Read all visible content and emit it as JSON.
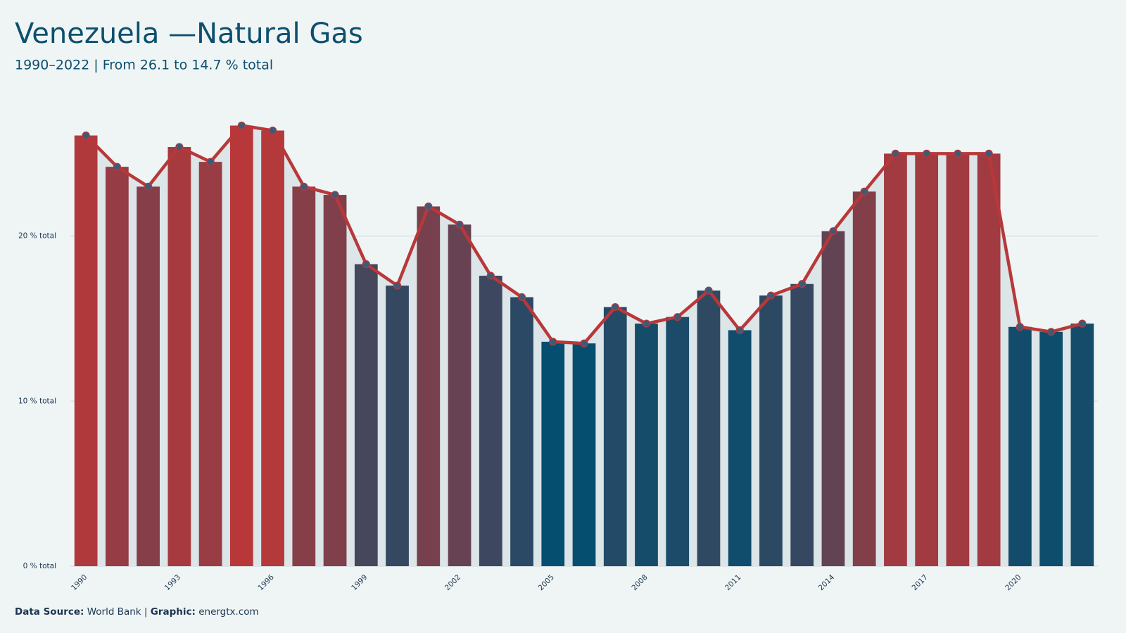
{
  "chart_data": {
    "type": "bar",
    "title": "Venezuela —Natural Gas",
    "subtitle": "1990–2022 | From 26.1 to 14.7 % total",
    "x": [
      1990,
      1991,
      1992,
      1993,
      1994,
      1995,
      1996,
      1997,
      1998,
      1999,
      2000,
      2001,
      2002,
      2003,
      2004,
      2005,
      2006,
      2007,
      2008,
      2009,
      2010,
      2011,
      2012,
      2013,
      2014,
      2015,
      2016,
      2017,
      2018,
      2019,
      2020,
      2021,
      2022
    ],
    "values": [
      26.1,
      24.2,
      23.0,
      25.4,
      24.5,
      26.7,
      26.4,
      23.0,
      22.5,
      18.3,
      17.0,
      21.8,
      20.7,
      17.6,
      16.3,
      13.6,
      13.5,
      15.7,
      14.7,
      15.1,
      16.7,
      14.3,
      16.4,
      17.1,
      20.3,
      22.7,
      25.0,
      25.0,
      25.0,
      25.0,
      14.5,
      14.2,
      14.7
    ],
    "xlim": [
      1989.5,
      2022.5
    ],
    "xticks": [
      1990,
      1993,
      1996,
      1999,
      2002,
      2005,
      2008,
      2011,
      2014,
      2017,
      2020
    ],
    "ylim": [
      0,
      28
    ],
    "yticks": [
      {
        "value": 0,
        "label": "0 % total"
      },
      {
        "value": 10,
        "label": "10 % total"
      },
      {
        "value": 20,
        "label": "20 % total"
      }
    ],
    "grid": true,
    "color_scale": [
      "#054e6f",
      "#b8383a"
    ],
    "line_color": "#b8383a",
    "area_color": "#dce5e7",
    "footer": {
      "source_label": "Data Source:",
      "source": "World Bank",
      "separator": "|",
      "graphic_label": "Graphic:",
      "graphic": "energtx.com"
    }
  }
}
